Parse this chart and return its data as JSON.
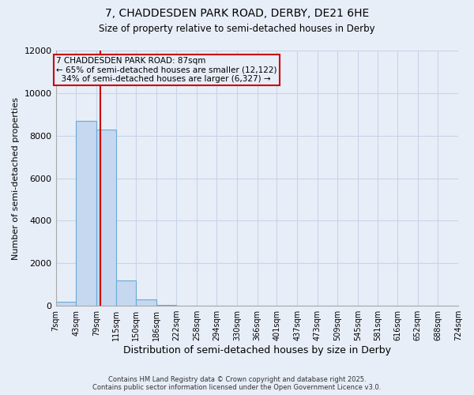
{
  "title_line1": "7, CHADDESDEN PARK ROAD, DERBY, DE21 6HE",
  "title_line2": "Size of property relative to semi-detached houses in Derby",
  "xlabel": "Distribution of semi-detached houses by size in Derby",
  "ylabel": "Number of semi-detached properties",
  "property_size": 87,
  "property_label": "7 CHADDESDEN PARK ROAD: 87sqm",
  "pct_smaller": 65,
  "count_smaller": 12122,
  "pct_larger": 34,
  "count_larger": 6327,
  "bin_edges": [
    7,
    43,
    79,
    115,
    150,
    186,
    222,
    258,
    294,
    330,
    366,
    401,
    437,
    473,
    509,
    545,
    581,
    616,
    652,
    688,
    724
  ],
  "bar_heights": [
    200,
    8700,
    8300,
    1200,
    300,
    50,
    0,
    0,
    0,
    0,
    0,
    0,
    0,
    0,
    0,
    0,
    0,
    0,
    0,
    0
  ],
  "bar_color": "#c5d8f0",
  "bar_edge_color": "#6aaad4",
  "vline_color": "#cc0000",
  "annotation_box_color": "#cc0000",
  "grid_color": "#c8d4e8",
  "bg_color": "#e8eef8",
  "plot_bg_color": "#e8eef8",
  "ylim": [
    0,
    12000
  ],
  "yticks": [
    0,
    2000,
    4000,
    6000,
    8000,
    10000,
    12000
  ],
  "footer_line1": "Contains HM Land Registry data © Crown copyright and database right 2025.",
  "footer_line2": "Contains public sector information licensed under the Open Government Licence v3.0."
}
